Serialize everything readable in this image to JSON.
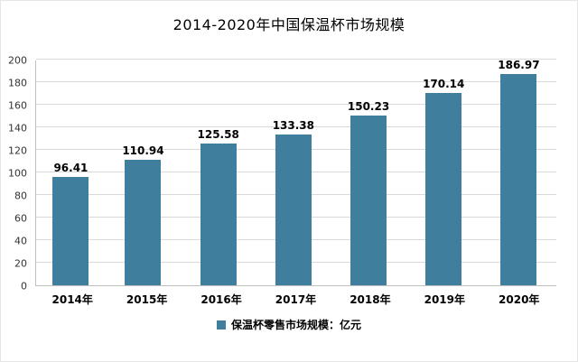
{
  "legend": {
    "label": "保温杯零售市场规模：亿元"
  },
  "chart_data": {
    "type": "bar",
    "title": "2014-2020年中国保温杯市场规模",
    "categories": [
      "2014年",
      "2015年",
      "2016年",
      "2017年",
      "2018年",
      "2019年",
      "2020年"
    ],
    "values": [
      96.41,
      110.94,
      125.58,
      133.38,
      150.23,
      170.14,
      186.97
    ],
    "value_labels": [
      "96.41",
      "110.94",
      "125.58",
      "133.38",
      "150.23",
      "170.14",
      "186.97"
    ],
    "xlabel": "",
    "ylabel": "",
    "ylim": [
      0,
      200
    ],
    "ytick_step": 20,
    "ytick_labels": [
      "0",
      "20",
      "40",
      "60",
      "80",
      "100",
      "120",
      "140",
      "160",
      "180",
      "200"
    ],
    "bar_color": "#3F7F9D",
    "grid": true,
    "legend_entries": [
      "保温杯零售市场规模：亿元"
    ],
    "legend_position": "bottom"
  }
}
